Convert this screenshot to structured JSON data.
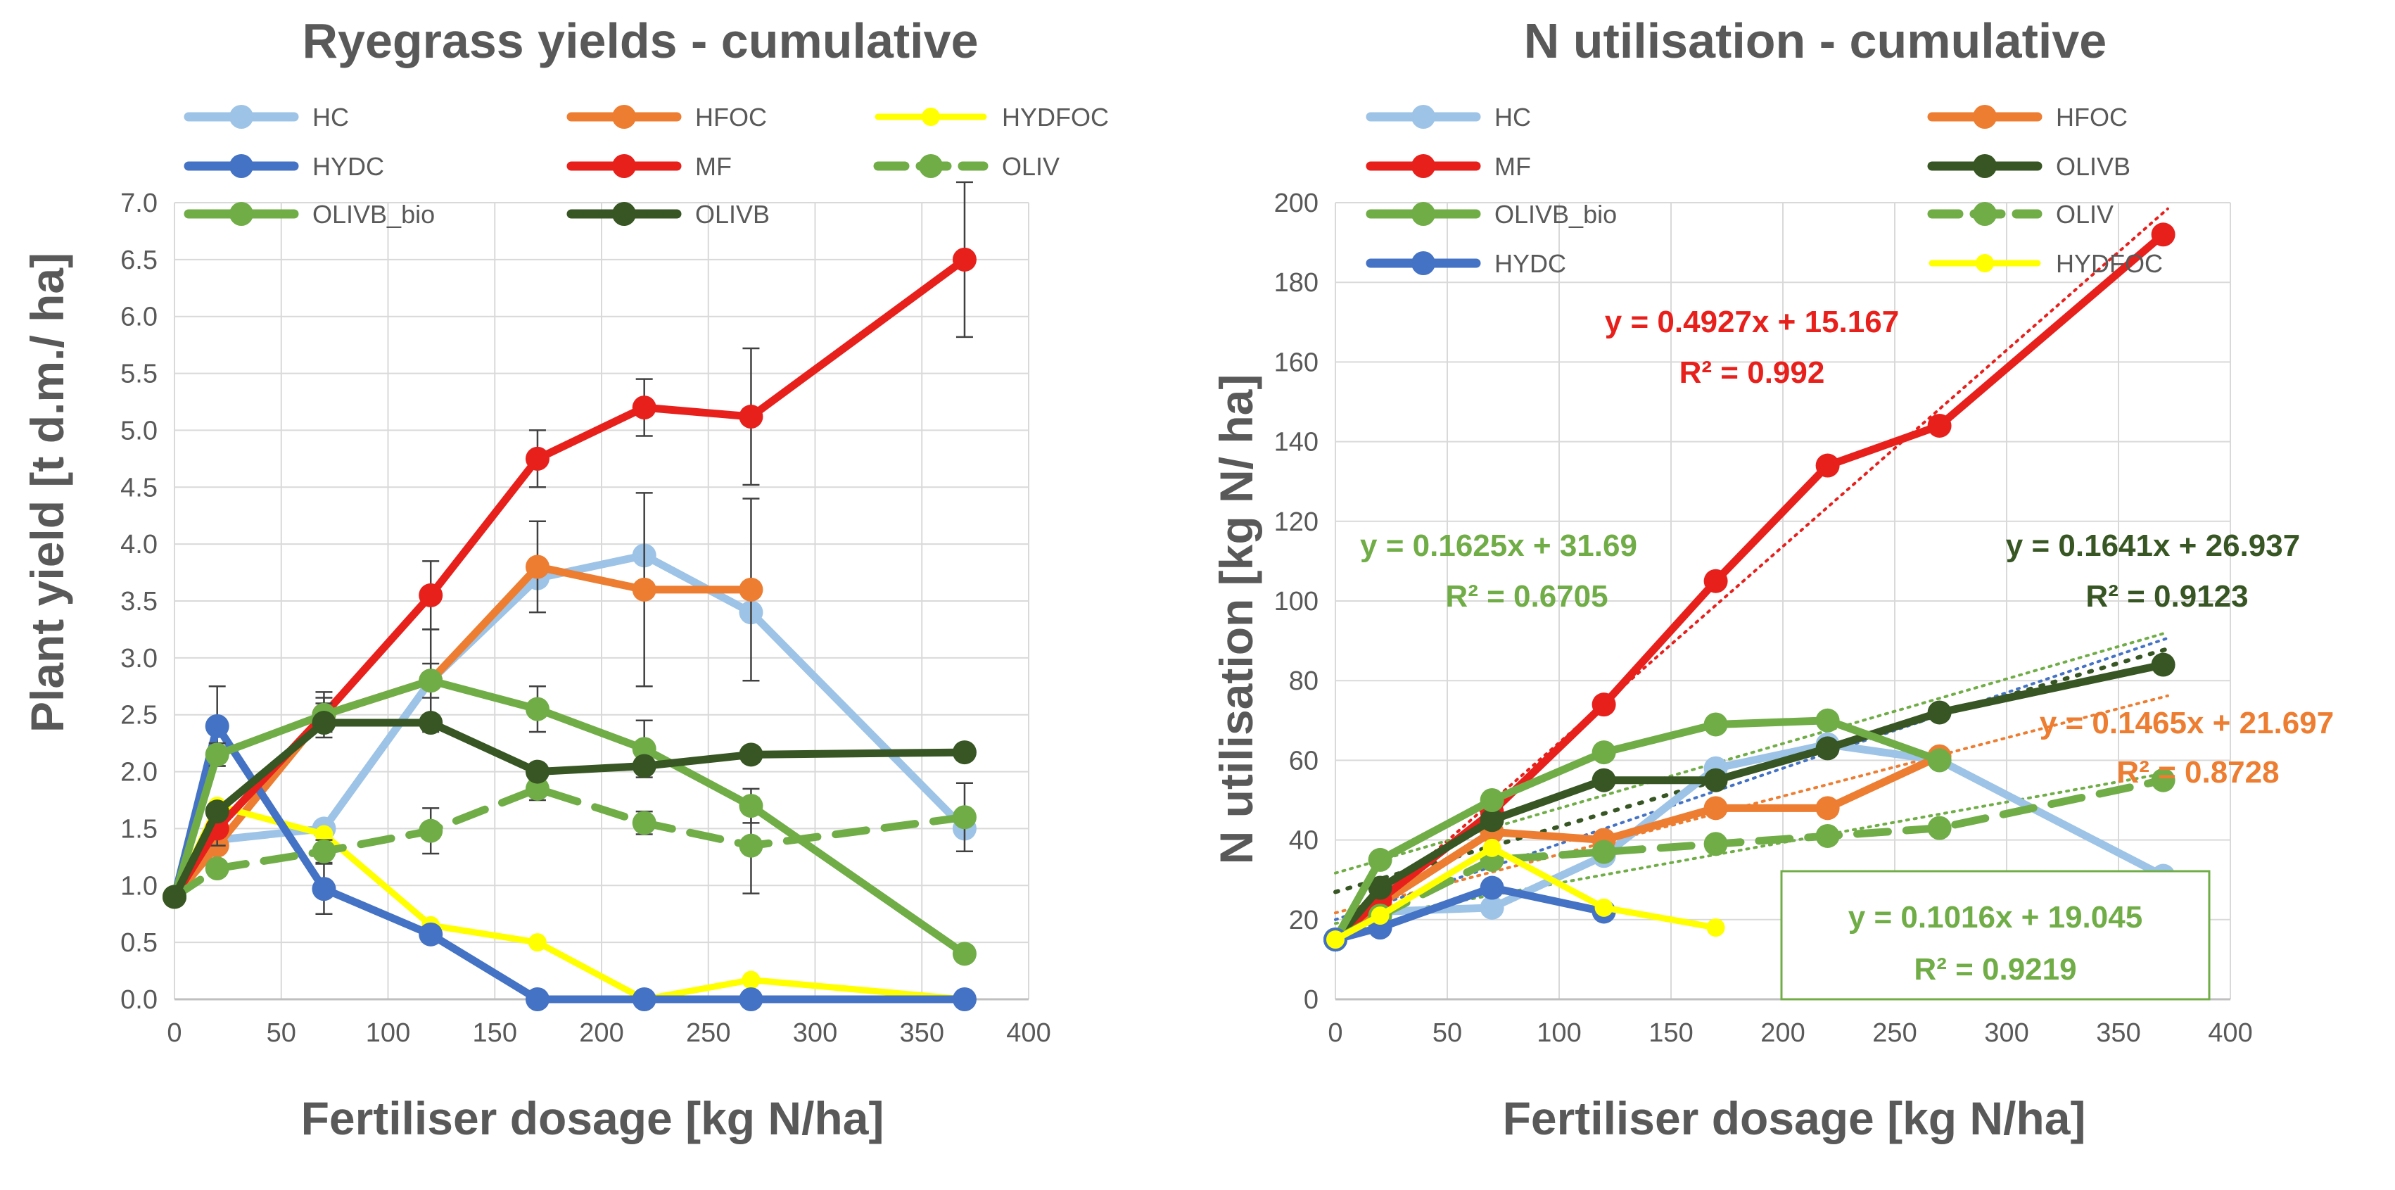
{
  "colors": {
    "HC": "#9DC3E6",
    "HFOC": "#ED7D31",
    "HYDFOC": "#FFFF00",
    "HYDC": "#4472C4",
    "MF": "#E8201C",
    "OLIV": "#70AD47",
    "OLIVB_bio": "#70AD47",
    "OLIVB": "#375623",
    "axis": "#D9D9D9",
    "text": "#595959"
  },
  "chart_data": [
    {
      "type": "line",
      "title": "Ryegrass yields - cumulative",
      "xlabel": "Fertiliser dosage  [kg N/ha]",
      "ylabel": "Plant yield [t d.m./ ha]",
      "xlim": [
        0,
        400
      ],
      "ylim": [
        0,
        7.0
      ],
      "xticks": [
        0,
        50,
        100,
        150,
        200,
        250,
        300,
        350,
        400
      ],
      "xtick_labels": [
        "0",
        "50",
        "100",
        "150",
        "200",
        "250",
        "300",
        "350",
        "400"
      ],
      "yticks": [
        0,
        0.5,
        1.0,
        1.5,
        2.0,
        2.5,
        3.0,
        3.5,
        4.0,
        4.5,
        5.0,
        5.5,
        6.0,
        6.5,
        7.0
      ],
      "ytick_labels": [
        "0.0",
        "0.5",
        "1.0",
        "1.5",
        "2.0",
        "2.5",
        "3.0",
        "3.5",
        "4.0",
        "4.5",
        "5.0",
        "5.5",
        "6.0",
        "6.5",
        "7.0"
      ],
      "grid": true,
      "legend_position": "top",
      "legend": [
        "HC",
        "HFOC",
        "HYDFOC",
        "HYDC",
        "MF",
        "OLIV",
        "OLIVB_bio",
        "OLIVB"
      ],
      "series": [
        {
          "name": "HC",
          "dashed": false,
          "x": [
            0,
            20,
            70,
            120,
            170,
            220,
            270,
            370
          ],
          "values": [
            0.9,
            1.4,
            1.5,
            2.8,
            3.7,
            3.9,
            3.4,
            1.5
          ]
        },
        {
          "name": "HFOC",
          "dashed": false,
          "x": [
            0,
            20,
            70,
            120,
            170,
            220,
            270
          ],
          "values": [
            0.9,
            1.35,
            2.5,
            2.8,
            3.8,
            3.6,
            3.6
          ],
          "err": [
            0,
            0.15,
            0.2,
            0.45,
            0.4,
            0.85,
            0.8
          ]
        },
        {
          "name": "HYDFOC",
          "dashed": false,
          "x": [
            0,
            20,
            70,
            120,
            170,
            220,
            270,
            370
          ],
          "values": [
            0.9,
            1.7,
            1.45,
            0.65,
            0.5,
            0.0,
            0.17,
            0.0
          ]
        },
        {
          "name": "HYDC",
          "dashed": false,
          "x": [
            0,
            20,
            70,
            120,
            170,
            220,
            270,
            370
          ],
          "values": [
            0.9,
            2.4,
            0.97,
            0.57,
            0.0,
            0.0,
            0.0,
            0.0
          ],
          "err": [
            0,
            0.35,
            0.22,
            0.05,
            0,
            0,
            0,
            0
          ]
        },
        {
          "name": "MF",
          "dashed": false,
          "x": [
            0,
            20,
            70,
            120,
            170,
            220,
            270,
            370
          ],
          "values": [
            0.9,
            1.5,
            2.5,
            3.55,
            4.75,
            5.2,
            5.12,
            6.5
          ],
          "err": [
            0,
            0.15,
            0.15,
            0.3,
            0.25,
            0.25,
            0.6,
            0.68
          ]
        },
        {
          "name": "OLIV",
          "dashed": true,
          "x": [
            0,
            20,
            70,
            120,
            170,
            220,
            270,
            370
          ],
          "values": [
            0.9,
            1.15,
            1.3,
            1.48,
            1.85,
            1.55,
            1.35,
            1.6
          ],
          "err": [
            0,
            0.05,
            0.1,
            0.2,
            0.1,
            0.1,
            0.42,
            0.3
          ]
        },
        {
          "name": "OLIVB_bio",
          "dashed": false,
          "x": [
            0,
            20,
            70,
            120,
            170,
            220,
            270,
            370
          ],
          "values": [
            0.9,
            2.15,
            2.5,
            2.8,
            2.55,
            2.2,
            1.7,
            0.4
          ],
          "err": [
            0,
            0.1,
            0.1,
            0.15,
            0.2,
            0.25,
            0.15,
            0.05
          ]
        },
        {
          "name": "OLIVB",
          "dashed": false,
          "x": [
            0,
            20,
            70,
            120,
            170,
            220,
            270,
            370
          ],
          "values": [
            0.9,
            1.65,
            2.43,
            2.43,
            2.0,
            2.05,
            2.15,
            2.17
          ]
        }
      ]
    },
    {
      "type": "line",
      "title": "N utilisation - cumulative",
      "xlabel": "Fertiliser dosage  [kg N/ha]",
      "ylabel": "N utilisation  [kg N/ ha]",
      "xlim": [
        0,
        400
      ],
      "ylim": [
        0,
        200
      ],
      "xticks": [
        0,
        50,
        100,
        150,
        200,
        250,
        300,
        350,
        400
      ],
      "xtick_labels": [
        "0",
        "50",
        "100",
        "150",
        "200",
        "250",
        "300",
        "350",
        "400"
      ],
      "yticks": [
        0,
        20,
        40,
        60,
        80,
        100,
        120,
        140,
        160,
        180,
        200
      ],
      "ytick_labels": [
        "0",
        "20",
        "40",
        "60",
        "80",
        "100",
        "120",
        "140",
        "160",
        "180",
        "200"
      ],
      "grid": true,
      "legend_position": "top",
      "legend": [
        "HC",
        "HFOC",
        "MF",
        "OLIVB",
        "OLIVB_bio",
        "OLIV",
        "HYDC",
        "HYDFOC"
      ],
      "series": [
        {
          "name": "HC",
          "dashed": false,
          "x": [
            0,
            20,
            70,
            120,
            170,
            220,
            270,
            370
          ],
          "values": [
            15,
            22,
            23,
            36,
            58,
            64,
            60,
            31
          ]
        },
        {
          "name": "HFOC",
          "dashed": false,
          "x": [
            0,
            20,
            70,
            120,
            170,
            220,
            270
          ],
          "values": [
            15,
            24,
            42,
            40,
            48,
            48,
            61
          ]
        },
        {
          "name": "MF",
          "dashed": false,
          "x": [
            0,
            20,
            70,
            120,
            170,
            220,
            270,
            370
          ],
          "values": [
            15,
            25,
            47,
            74,
            105,
            134,
            144,
            192
          ]
        },
        {
          "name": "OLIVB",
          "dashed": false,
          "x": [
            0,
            20,
            70,
            120,
            170,
            220,
            270,
            370
          ],
          "values": [
            15,
            28,
            45,
            55,
            55,
            63,
            72,
            84
          ]
        },
        {
          "name": "OLIVB_bio",
          "dashed": false,
          "x": [
            0,
            20,
            70,
            120,
            170,
            220,
            270
          ],
          "values": [
            15,
            35,
            50,
            62,
            69,
            70,
            60
          ]
        },
        {
          "name": "OLIV",
          "dashed": true,
          "x": [
            0,
            20,
            70,
            120,
            170,
            220,
            270,
            370
          ],
          "values": [
            15,
            21,
            35,
            37,
            39,
            41,
            43,
            55
          ]
        },
        {
          "name": "HYDC",
          "dashed": false,
          "x": [
            0,
            20,
            70,
            120
          ],
          "values": [
            15,
            18,
            28,
            22
          ]
        },
        {
          "name": "HYDFOC",
          "dashed": false,
          "x": [
            0,
            20,
            70,
            120,
            170
          ],
          "values": [
            15,
            21,
            38,
            23,
            18
          ]
        }
      ],
      "trendlines": [
        {
          "series": "MF",
          "slope": 0.4927,
          "intercept": 15.167,
          "color": "MF"
        },
        {
          "series": "OLIVB_bio",
          "slope": 0.1625,
          "intercept": 31.69,
          "color": "OLIVB_bio"
        },
        {
          "series": "OLIVB",
          "slope": 0.1641,
          "intercept": 26.937,
          "color": "OLIVB"
        },
        {
          "series": "HFOC",
          "slope": 0.1465,
          "intercept": 21.697,
          "color": "HFOC"
        },
        {
          "series": "OLIV",
          "slope": 0.1016,
          "intercept": 19.045,
          "color": "OLIV"
        },
        {
          "series": "HC",
          "slope": 0.19,
          "intercept": 20.0,
          "color": "HYDC"
        }
      ],
      "annotations": [
        {
          "id": "mf",
          "line1": "y = 0.4927x + 15.167",
          "line2": "R² = 0.992",
          "color": "#E8201C"
        },
        {
          "id": "olivb_bio",
          "line1": "y = 0.1625x + 31.69",
          "line2": "R² = 0.6705",
          "color": "#70AD47"
        },
        {
          "id": "olivb",
          "line1": "y = 0.1641x + 26.937",
          "line2": "R² = 0.9123",
          "color": "#375623"
        },
        {
          "id": "hfoc",
          "line1": "y = 0.1465x + 21.697",
          "line2": "R² = 0.8728",
          "color": "#ED7D31"
        },
        {
          "id": "oliv",
          "line1": "y = 0.1016x + 19.045",
          "line2": "R² = 0.9219",
          "color": "#70AD47"
        }
      ]
    }
  ]
}
